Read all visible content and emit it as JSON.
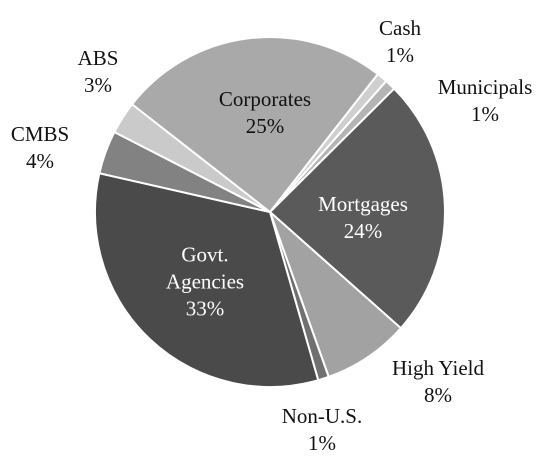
{
  "chart_data": {
    "type": "pie",
    "categories": [
      "Cash",
      "Municipals",
      "Mortgages",
      "High Yield",
      "Non-U.S.",
      "Govt. Agencies",
      "CMBS",
      "ABS",
      "Corporates"
    ],
    "values": [
      1,
      1,
      24,
      8,
      1,
      33,
      4,
      3,
      25
    ],
    "value_labels": [
      "1%",
      "1%",
      "24%",
      "8%",
      "1%",
      "33%",
      "4%",
      "3%",
      "25%"
    ],
    "colors": [
      "#cfcfcf",
      "#b4b4b4",
      "#5a5a5a",
      "#a2a2a2",
      "#707070",
      "#4a4a4a",
      "#828282",
      "#cacaca",
      "#a9a9a9"
    ]
  }
}
